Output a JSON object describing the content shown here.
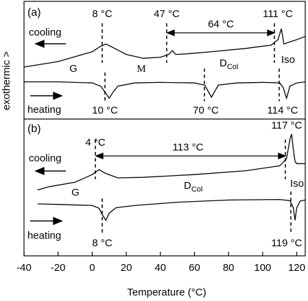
{
  "chart_data": {
    "type": "line",
    "xlabel": "Temperature (°C)",
    "ylabel": "exothermic >",
    "xlim": [
      -40,
      125
    ],
    "x_ticks": [
      "-40",
      "-20",
      "0",
      "20",
      "40",
      "60",
      "80",
      "100",
      "120"
    ],
    "x_tick_values": [
      -40,
      -20,
      0,
      20,
      40,
      60,
      80,
      100,
      120
    ],
    "grid": false,
    "legend": "none",
    "panels": [
      {
        "label": "(a)",
        "series": [
          {
            "name": "cooling",
            "x": [
              -40,
              -20,
              0,
              5,
              8,
              12,
              20,
              30,
              40,
              45,
              47,
              49,
              55,
              70,
              90,
              105,
              109,
              111,
              112.5,
              115,
              120,
              125
            ],
            "y": [
              0.1,
              0.2,
              0.38,
              0.48,
              0.52,
              0.46,
              0.33,
              0.26,
              0.28,
              0.33,
              0.4,
              0.33,
              0.34,
              0.38,
              0.44,
              0.5,
              0.6,
              0.8,
              0.52,
              0.55,
              0.6,
              0.66
            ]
          },
          {
            "name": "heating",
            "x": [
              -40,
              -20,
              0,
              5,
              8,
              10,
              12,
              15,
              25,
              40,
              60,
              66,
              70,
              74,
              85,
              100,
              110,
              112,
              114,
              116,
              120,
              125
            ],
            "y": [
              -0.42,
              -0.42,
              -0.44,
              -0.5,
              -0.63,
              -0.72,
              -0.62,
              -0.5,
              -0.44,
              -0.43,
              -0.44,
              -0.48,
              -0.7,
              -0.48,
              -0.44,
              -0.43,
              -0.44,
              -0.52,
              -0.72,
              -0.5,
              -0.44,
              -0.42
            ]
          }
        ],
        "annotations": [
          "8 °C",
          "47 °C",
          "64 °C",
          "111 °C",
          "10 °C",
          "70 °C",
          "114 °C"
        ],
        "phases": [
          "G",
          "M",
          "D",
          "Col",
          "Iso"
        ]
      },
      {
        "label": "(b)",
        "series": [
          {
            "name": "cooling",
            "x": [
              -32,
              -25,
              -10,
              0,
              4,
              8,
              15,
              30,
              60,
              90,
              110,
              114,
              116,
              117,
              118,
              119,
              120,
              125
            ],
            "y": [
              -0.02,
              0.04,
              0.12,
              0.26,
              0.35,
              0.28,
              0.2,
              0.21,
              0.26,
              0.33,
              0.42,
              0.55,
              0.9,
              1.0,
              0.72,
              0.5,
              0.46,
              0.46
            ]
          },
          {
            "name": "heating",
            "x": [
              -32,
              -20,
              0,
              4,
              6,
              8,
              10,
              14,
              25,
              50,
              80,
              110,
              116,
              118,
              119,
              120,
              122,
              125
            ],
            "y": [
              -0.55,
              -0.56,
              -0.58,
              -0.63,
              -0.75,
              -0.85,
              -0.72,
              -0.62,
              -0.58,
              -0.52,
              -0.48,
              -0.47,
              -0.49,
              -0.62,
              -0.85,
              -0.62,
              -0.5,
              -0.48
            ]
          }
        ],
        "annotations": [
          "4 °C",
          "113 °C",
          "117 °C",
          "8 °C",
          "119 °C"
        ],
        "phases": [
          "G",
          "D",
          "Col",
          "Iso"
        ]
      }
    ]
  }
}
